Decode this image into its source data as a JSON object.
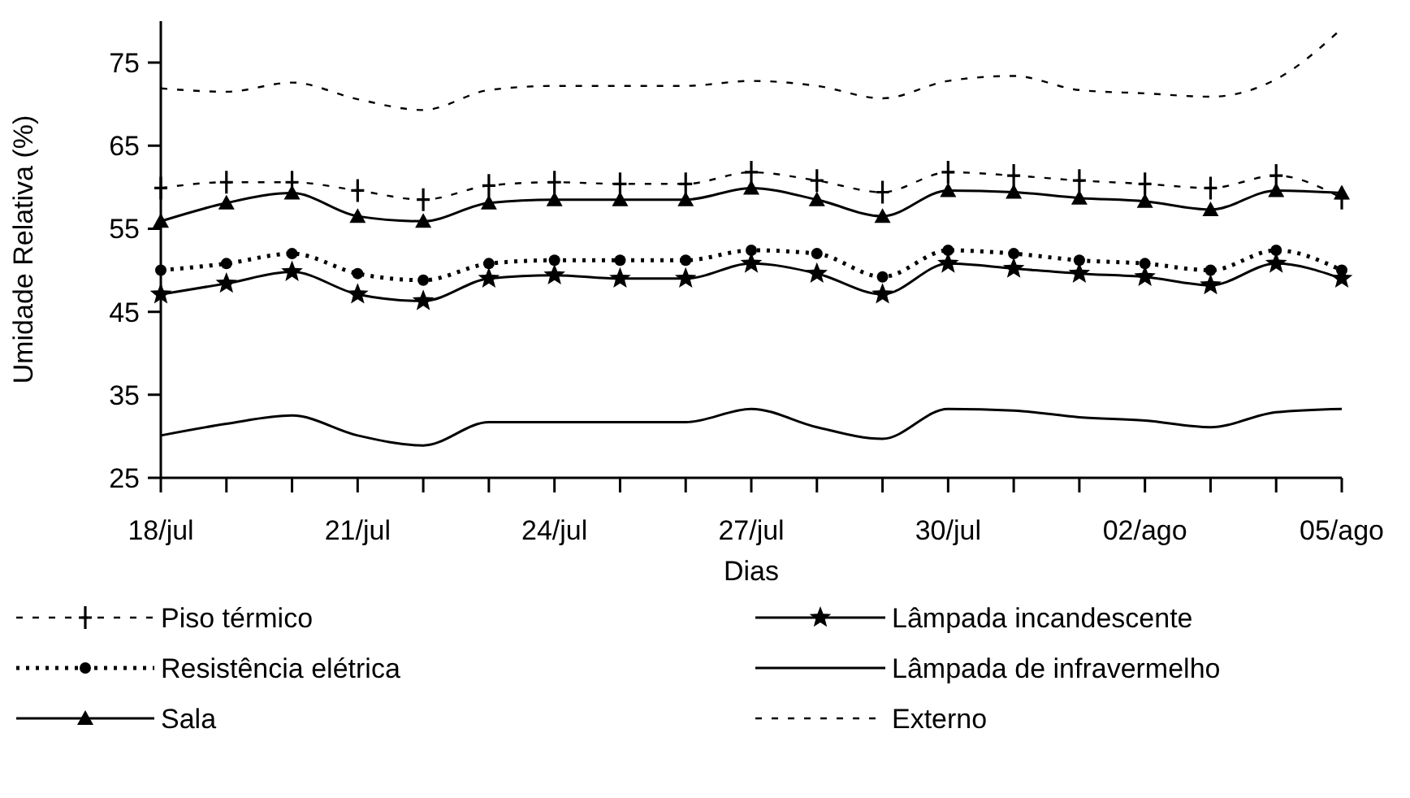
{
  "chart_data": {
    "type": "line",
    "xlabel": "Dias",
    "ylabel": "Umidade Relativa (%)",
    "categories": [
      "18/jul",
      null,
      null,
      "21/jul",
      null,
      null,
      "24/jul",
      null,
      null,
      "27/jul",
      null,
      null,
      "30/jul",
      null,
      null,
      "02/ago",
      null,
      null,
      "05/ago"
    ],
    "ylim": [
      25,
      80
    ],
    "yticks": [
      25,
      35,
      45,
      55,
      65,
      75
    ],
    "grid": false,
    "legend": "bottom",
    "series": [
      {
        "name": "Piso térmico",
        "color": "#000000",
        "marker": "cross",
        "line_style": "dashed",
        "values": [
          59.9,
          60.6,
          60.6,
          59.6,
          58.5,
          60.2,
          60.6,
          60.4,
          60.4,
          61.8,
          60.8,
          59.4,
          61.8,
          61.4,
          60.8,
          60.4,
          59.9,
          61.4,
          58.7
        ]
      },
      {
        "name": "Lâmpada incandescente",
        "color": "#000000",
        "marker": "star",
        "line_style": "solid",
        "values": [
          47.1,
          48.4,
          49.8,
          47.1,
          46.3,
          49,
          49.4,
          49,
          49,
          50.8,
          49.6,
          47.1,
          50.8,
          50.2,
          49.6,
          49.2,
          48.2,
          50.8,
          49
        ]
      },
      {
        "name": "Resistência elétrica",
        "color": "#000000",
        "marker": "circle",
        "line_style": "dotted",
        "values": [
          50,
          50.8,
          52,
          49.6,
          48.8,
          50.8,
          51.2,
          51.2,
          51.2,
          52.4,
          52,
          49.2,
          52.4,
          52,
          51.2,
          50.8,
          50,
          52.4,
          50
        ]
      },
      {
        "name": "Lâmpada de infravermelho",
        "color": "#000000",
        "marker": "none",
        "line_style": "solid",
        "values": [
          30.1,
          31.5,
          32.5,
          30.1,
          28.9,
          31.7,
          31.7,
          31.7,
          31.7,
          33.3,
          31.1,
          29.7,
          33.3,
          33.1,
          32.3,
          31.9,
          31.1,
          32.9,
          33.3
        ]
      },
      {
        "name": "Sala",
        "color": "#000000",
        "marker": "triangle",
        "line_style": "solid",
        "values": [
          55.9,
          58.1,
          59.3,
          56.5,
          55.9,
          58.1,
          58.5,
          58.5,
          58.5,
          59.9,
          58.5,
          56.5,
          59.6,
          59.4,
          58.7,
          58.3,
          57.3,
          59.6,
          59.3
        ]
      },
      {
        "name": "Externo",
        "color": "#000000",
        "marker": "none",
        "line_style": "dashed",
        "values": [
          71.9,
          71.5,
          72.6,
          70.6,
          69.3,
          71.7,
          72.2,
          72.2,
          72.2,
          72.8,
          72.2,
          70.7,
          72.8,
          73.4,
          71.7,
          71.3,
          70.9,
          73,
          79.1
        ]
      }
    ]
  }
}
